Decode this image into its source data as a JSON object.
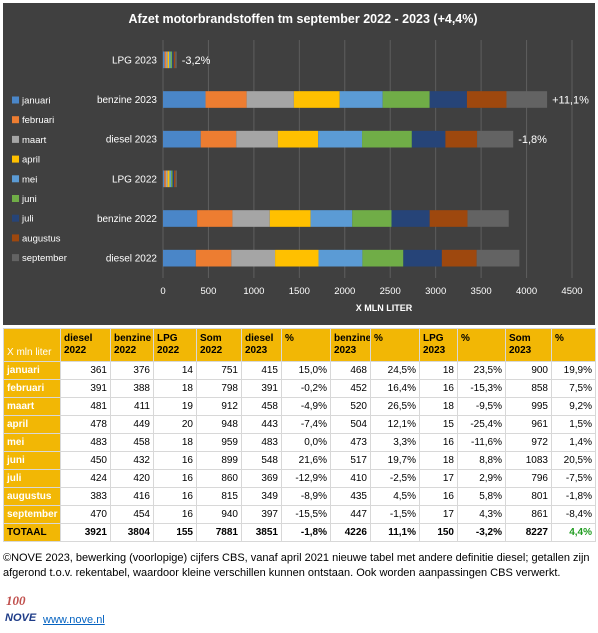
{
  "chart_data": {
    "type": "bar",
    "orientation": "horizontal",
    "stacked": true,
    "title": "Afzet motorbrandstoffen tm september 2022 - 2023 (+4,4%)",
    "xlabel": "X MLN LITER",
    "xlim": [
      0,
      4500
    ],
    "xticks": [
      0,
      500,
      1000,
      1500,
      2000,
      2500,
      3000,
      3500,
      4000,
      4500
    ],
    "grid": true,
    "legend_position": "left",
    "categories": [
      "diesel 2022",
      "benzine 2022",
      "LPG 2022",
      "diesel 2023",
      "benzine 2023",
      "LPG 2023"
    ],
    "change_labels": [
      "",
      "",
      "",
      "-1,8%",
      "+11,1%",
      "-3,2%"
    ],
    "series": [
      {
        "name": "januari",
        "color": "#4a86c8",
        "values": [
          361,
          376,
          14,
          415,
          468,
          18
        ]
      },
      {
        "name": "februari",
        "color": "#ed7d31",
        "values": [
          391,
          388,
          18,
          391,
          452,
          16
        ]
      },
      {
        "name": "maart",
        "color": "#a5a5a5",
        "values": [
          481,
          411,
          19,
          458,
          520,
          18
        ]
      },
      {
        "name": "april",
        "color": "#ffc000",
        "values": [
          478,
          449,
          20,
          443,
          504,
          15
        ]
      },
      {
        "name": "mei",
        "color": "#5b9bd5",
        "values": [
          483,
          458,
          18,
          483,
          473,
          16
        ]
      },
      {
        "name": "juni",
        "color": "#70ad47",
        "values": [
          450,
          432,
          16,
          548,
          517,
          18
        ]
      },
      {
        "name": "juli",
        "color": "#264478",
        "values": [
          424,
          420,
          16,
          369,
          410,
          17
        ]
      },
      {
        "name": "augustus",
        "color": "#9e480e",
        "values": [
          383,
          416,
          16,
          349,
          435,
          16
        ]
      },
      {
        "name": "september",
        "color": "#636363",
        "values": [
          470,
          454,
          16,
          397,
          447,
          17
        ]
      }
    ]
  },
  "table": {
    "header": [
      "X mln liter",
      "diesel 2022",
      "benzine 2022",
      "LPG 2022",
      "Som 2022",
      "diesel 2023",
      "%",
      "benzine 2023",
      "%",
      "LPG 2023",
      "%",
      "Som 2023",
      "%"
    ],
    "rows": [
      [
        "januari",
        "361",
        "376",
        "14",
        "751",
        "415",
        "15,0%",
        "468",
        "24,5%",
        "18",
        "23,5%",
        "900",
        "19,9%"
      ],
      [
        "februari",
        "391",
        "388",
        "18",
        "798",
        "391",
        "-0,2%",
        "452",
        "16,4%",
        "16",
        "-15,3%",
        "858",
        "7,5%"
      ],
      [
        "maart",
        "481",
        "411",
        "19",
        "912",
        "458",
        "-4,9%",
        "520",
        "26,5%",
        "18",
        "-9,5%",
        "995",
        "9,2%"
      ],
      [
        "april",
        "478",
        "449",
        "20",
        "948",
        "443",
        "-7,4%",
        "504",
        "12,1%",
        "15",
        "-25,4%",
        "961",
        "1,5%"
      ],
      [
        "mei",
        "483",
        "458",
        "18",
        "959",
        "483",
        "0,0%",
        "473",
        "3,3%",
        "16",
        "-11,6%",
        "972",
        "1,4%"
      ],
      [
        "juni",
        "450",
        "432",
        "16",
        "899",
        "548",
        "21,6%",
        "517",
        "19,7%",
        "18",
        "8,8%",
        "1083",
        "20,5%"
      ],
      [
        "juli",
        "424",
        "420",
        "16",
        "860",
        "369",
        "-12,9%",
        "410",
        "-2,5%",
        "17",
        "2,9%",
        "796",
        "-7,5%"
      ],
      [
        "augustus",
        "383",
        "416",
        "16",
        "815",
        "349",
        "-8,9%",
        "435",
        "4,5%",
        "16",
        "5,8%",
        "801",
        "-1,8%"
      ],
      [
        " september",
        "470",
        "454",
        "16",
        "940",
        "397",
        "-15,5%",
        "447",
        "-1,5%",
        "17",
        "4,3%",
        "861",
        "-8,4%"
      ]
    ],
    "total": [
      "TOTAAL",
      "3921",
      "3804",
      "155",
      "7881",
      "3851",
      "-1,8%",
      "4226",
      "11,1%",
      "150",
      "-3,2%",
      "8227",
      "4,4%"
    ]
  },
  "footer": {
    "note": "©NOVE 2023, bewerking (voorlopige) cijfers CBS, vanaf april 2021 nieuwe tabel met andere definitie diesel; getallen zijn afgerond t.o.v. rekentabel, waardoor kleine verschillen kunnen ontstaan. Ook worden aanpassingen CBS verwerkt.",
    "logo_text": "100",
    "logo_brand": "NOVE",
    "link": "www.nove.nl"
  }
}
